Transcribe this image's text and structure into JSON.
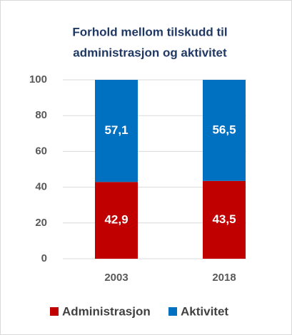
{
  "chart_data": {
    "type": "stacked_bar",
    "title": [
      "Forhold mellom tilskudd til",
      "administrasjon og aktivitet"
    ],
    "categories": [
      "2003",
      "2018"
    ],
    "series": [
      {
        "name": "Administrasjon",
        "color": "#c00000",
        "values": [
          42.9,
          43.5
        ],
        "value_labels": [
          "42,9",
          "43,5"
        ]
      },
      {
        "name": "Aktivitet",
        "color": "#0070c0",
        "values": [
          57.1,
          56.5
        ],
        "value_labels": [
          "57,1",
          "56,5"
        ]
      }
    ],
    "ylim": [
      0,
      100
    ],
    "yticks": [
      0,
      20,
      40,
      60,
      80,
      100
    ],
    "grid": true,
    "legend": "bottom"
  }
}
